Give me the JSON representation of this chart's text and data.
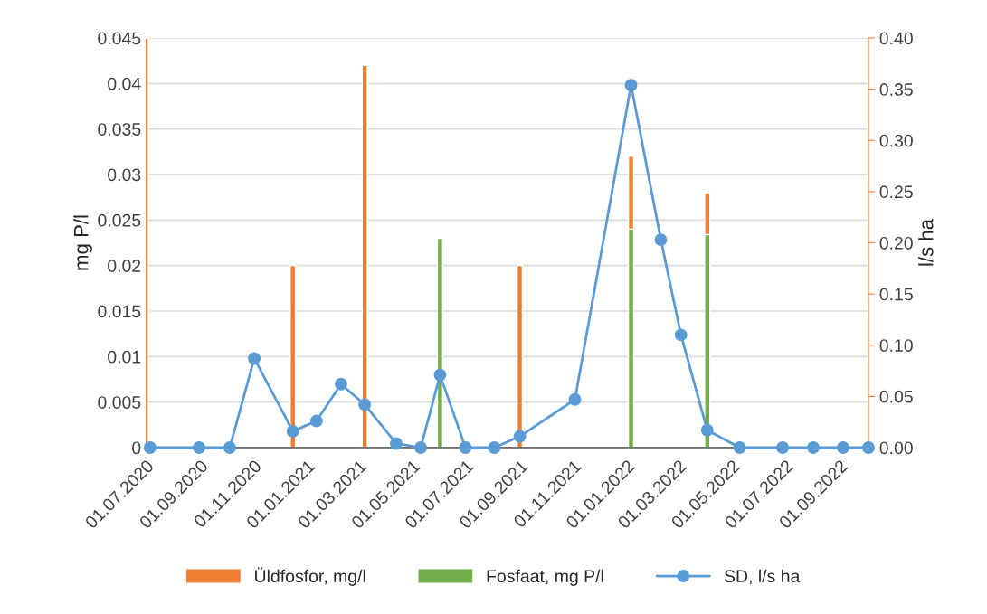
{
  "chart_data": {
    "type": "bar",
    "xlabel": null,
    "ylabel": "mg P/l",
    "y2label": "l/s ha",
    "series": [
      {
        "name": "Üldfosfor, mg/l",
        "color": "#ed7d31",
        "x": [
          "2020-07-01",
          "2020-12-16",
          "2021-03-08",
          "2021-06-02",
          "2021-09-01",
          "2022-01-06",
          "2022-04-03"
        ],
        "values": [
          0.045,
          0.02,
          0.042,
          null,
          0.02,
          0.032,
          0.028
        ]
      },
      {
        "name": "Fosfaat, mg P/l",
        "color": "#70ad47",
        "x": [
          "2021-06-02",
          "2022-01-06",
          "2022-04-03"
        ],
        "values": [
          0.023,
          0.024,
          0.0234
        ]
      },
      {
        "name": "SD, l/s ha",
        "type": "line",
        "axis": "y2",
        "color": "#5b9bd5",
        "marker": "circle",
        "x": [
          "2020-07-06",
          "2020-08-31",
          "2020-10-05",
          "2020-11-02",
          "2020-12-16",
          "2021-01-12",
          "2021-02-09",
          "2021-03-08",
          "2021-04-13",
          "2021-05-11",
          "2021-06-02",
          "2021-07-01",
          "2021-08-03",
          "2021-09-01",
          "2021-11-03",
          "2022-01-06",
          "2022-02-09",
          "2022-03-04",
          "2022-04-03",
          "2022-05-10",
          "2022-06-28",
          "2022-08-02",
          "2022-09-05",
          "2022-10-04"
        ],
        "values": [
          0,
          0,
          0,
          0.087,
          0.016,
          0.026,
          0.062,
          0.042,
          0.004,
          0,
          0.071,
          0,
          0,
          0.011,
          0.047,
          0.354,
          0.203,
          0.11,
          0.017,
          0,
          0,
          0,
          0,
          0
        ]
      }
    ],
    "xlim": [
      "2020-07-01",
      "2022-10-04"
    ],
    "xticks": [
      {
        "value": "2020-07-01",
        "label": "01.07.2020"
      },
      {
        "value": "2020-09-01",
        "label": "01.09.2020"
      },
      {
        "value": "2020-11-01",
        "label": "01.11.2020"
      },
      {
        "value": "2021-01-01",
        "label": "01.01.2021"
      },
      {
        "value": "2021-03-01",
        "label": "01.03.2021"
      },
      {
        "value": "2021-05-01",
        "label": "01.05.2021"
      },
      {
        "value": "2021-07-01",
        "label": "01.07.2021"
      },
      {
        "value": "2021-09-01",
        "label": "01.09.2021"
      },
      {
        "value": "2021-11-01",
        "label": "01.11.2021"
      },
      {
        "value": "2022-01-01",
        "label": "01.01.2022"
      },
      {
        "value": "2022-03-01",
        "label": "01.03.2022"
      },
      {
        "value": "2022-05-01",
        "label": "01.05.2022"
      },
      {
        "value": "2022-07-01",
        "label": "01.07.2022"
      },
      {
        "value": "2022-09-01",
        "label": "01.09.2022"
      }
    ],
    "ylim": [
      0,
      0.045
    ],
    "yticks": [
      0,
      0.005,
      0.01,
      0.015,
      0.02,
      0.025,
      0.03,
      0.035,
      0.04,
      0.045
    ],
    "y2lim": [
      0,
      0.4
    ],
    "y2ticks": [
      {
        "value": 0,
        "label": "0.00"
      },
      {
        "value": 0.05,
        "label": "0.05"
      },
      {
        "value": 0.1,
        "label": "0.10"
      },
      {
        "value": 0.15,
        "label": "0.15"
      },
      {
        "value": 0.2,
        "label": "0.20"
      },
      {
        "value": 0.25,
        "label": "0.25"
      },
      {
        "value": 0.3,
        "label": "0.30"
      },
      {
        "value": 0.35,
        "label": "0.35"
      },
      {
        "value": 0.4,
        "label": "0.40"
      }
    ],
    "grid": "y",
    "legend": "bottom"
  }
}
